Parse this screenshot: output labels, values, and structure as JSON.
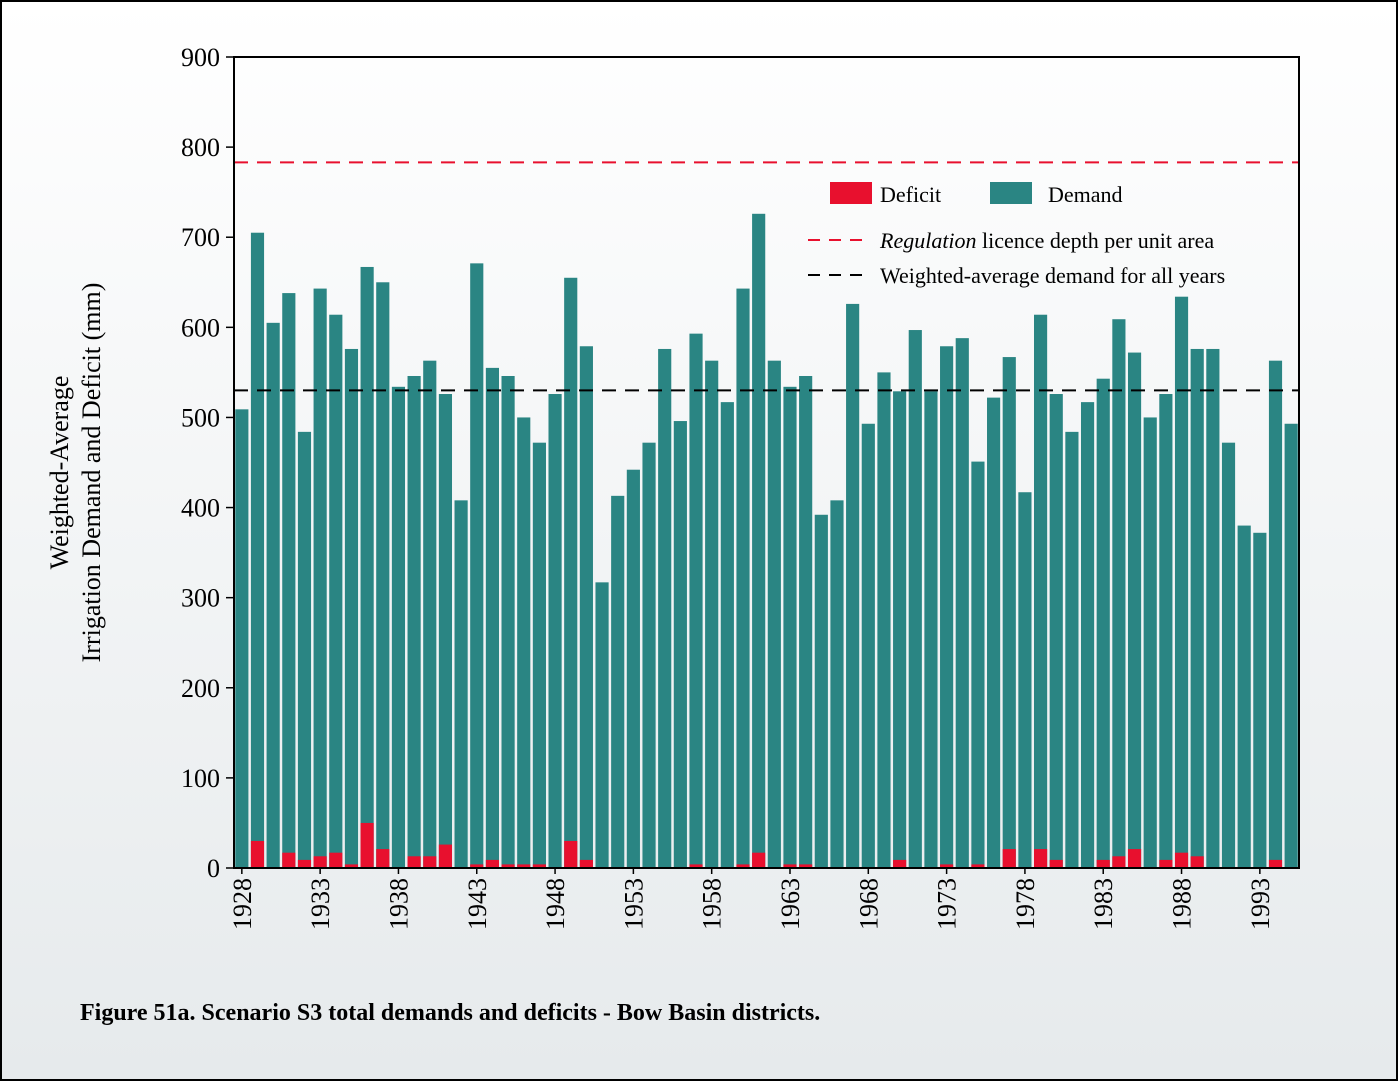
{
  "chart_data": {
    "type": "bar",
    "caption": "Figure 51a. Scenario S3 total demands and deficits - Bow Basin districts.",
    "ylabel": [
      "Weighted-Average",
      "Irrigation Demand and Deficit (mm)"
    ],
    "x": [
      1928,
      1929,
      1930,
      1931,
      1932,
      1933,
      1934,
      1935,
      1936,
      1937,
      1938,
      1939,
      1940,
      1941,
      1942,
      1943,
      1944,
      1945,
      1946,
      1947,
      1948,
      1949,
      1950,
      1951,
      1952,
      1953,
      1954,
      1955,
      1956,
      1957,
      1958,
      1959,
      1960,
      1961,
      1962,
      1963,
      1964,
      1965,
      1966,
      1967,
      1968,
      1969,
      1970,
      1971,
      1972,
      1973,
      1974,
      1975,
      1976,
      1977,
      1978,
      1979,
      1980,
      1981,
      1982,
      1983,
      1984,
      1985,
      1986,
      1987,
      1988,
      1989,
      1990,
      1991,
      1992,
      1993,
      1994,
      1995
    ],
    "xlim": [
      1927.5,
      1995.5
    ],
    "xticks": [
      1928,
      1933,
      1938,
      1943,
      1948,
      1953,
      1958,
      1963,
      1968,
      1973,
      1978,
      1983,
      1988,
      1993
    ],
    "ylim": [
      0,
      900
    ],
    "yticks": [
      0,
      100,
      200,
      300,
      400,
      500,
      600,
      700,
      800,
      900
    ],
    "series": [
      {
        "name": "Demand",
        "color": "#2a8583",
        "values": [
          509,
          705,
          605,
          638,
          484,
          643,
          614,
          576,
          667,
          650,
          534,
          546,
          563,
          526,
          408,
          671,
          555,
          546,
          500,
          472,
          526,
          655,
          579,
          317,
          413,
          442,
          472,
          576,
          496,
          593,
          563,
          517,
          643,
          726,
          563,
          534,
          546,
          392,
          408,
          626,
          493,
          550,
          529,
          597,
          529,
          579,
          588,
          451,
          522,
          567,
          417,
          614,
          526,
          484,
          517,
          543,
          609,
          572,
          500,
          526,
          634,
          576,
          576,
          472,
          380,
          372,
          563,
          493
        ]
      },
      {
        "name": "Deficit",
        "color": "#e8102e",
        "values": [
          0,
          30,
          0,
          17,
          9,
          13,
          17,
          4,
          50,
          21,
          0,
          13,
          13,
          26,
          0,
          4,
          9,
          4,
          4,
          4,
          0,
          30,
          9,
          0,
          0,
          0,
          0,
          0,
          0,
          4,
          0,
          0,
          4,
          17,
          0,
          4,
          4,
          0,
          0,
          0,
          0,
          0,
          9,
          0,
          0,
          4,
          0,
          4,
          0,
          21,
          0,
          21,
          9,
          0,
          0,
          9,
          13,
          21,
          0,
          9,
          17,
          13,
          0,
          0,
          0,
          0,
          9,
          0
        ]
      }
    ],
    "reference_lines": [
      {
        "name": "Regulation licence depth per unit area",
        "value": 783,
        "color": "#e8102e"
      },
      {
        "name": "Weighted-average demand for all years",
        "value": 530,
        "color": "#000000"
      }
    ]
  }
}
